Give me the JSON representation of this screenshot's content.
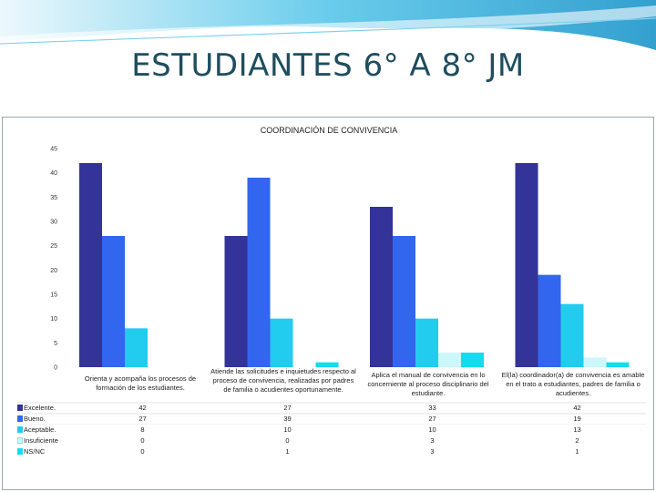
{
  "slide": {
    "title": "ESTUDIANTES 6° A 8° JM"
  },
  "chart_data": {
    "type": "bar",
    "title": "COORDINACIÓN DE CONVIVENCIA",
    "xlabel": "",
    "ylabel": "",
    "ylim": [
      0,
      45
    ],
    "yticks": [
      "0",
      "5",
      "10",
      "15",
      "20",
      "25",
      "30",
      "35",
      "40",
      "45"
    ],
    "grid": false,
    "legend": "table-left",
    "categories": [
      "Orienta y acompaña los procesos de formación de los estudiantes.",
      "Atiende las solicitudes e inquietudes respecto al proceso de convivencia, realizadas por padres de familia o acudientes oportunamente.",
      "Aplica el manual de convivencia en lo concerniente al proceso disciplinario del estudiante.",
      "El(la) coordinador(a) de convivencia es amable en el trato a estudiantes, padres de familia o acudientes."
    ],
    "series": [
      {
        "name": "Excelente.",
        "color": "#333399",
        "values": [
          42,
          27,
          33,
          42
        ]
      },
      {
        "name": "Bueno.",
        "color": "#3366ee",
        "values": [
          27,
          39,
          27,
          19
        ]
      },
      {
        "name": "Aceptable.",
        "color": "#22ccee",
        "values": [
          8,
          10,
          10,
          13
        ]
      },
      {
        "name": "Insuficiente",
        "color": "#ccf7fb",
        "values": [
          0,
          0,
          3,
          2
        ]
      },
      {
        "name": "NS/NC",
        "color": "#11ddee",
        "values": [
          0,
          1,
          3,
          1
        ]
      }
    ],
    "table": [
      [
        "42",
        "27",
        "33",
        "42"
      ],
      [
        "27",
        "39",
        "27",
        "19"
      ],
      [
        "8",
        "10",
        "10",
        "13"
      ],
      [
        "0",
        "0",
        "3",
        "2"
      ],
      [
        "0",
        "1",
        "3",
        "1"
      ]
    ]
  }
}
